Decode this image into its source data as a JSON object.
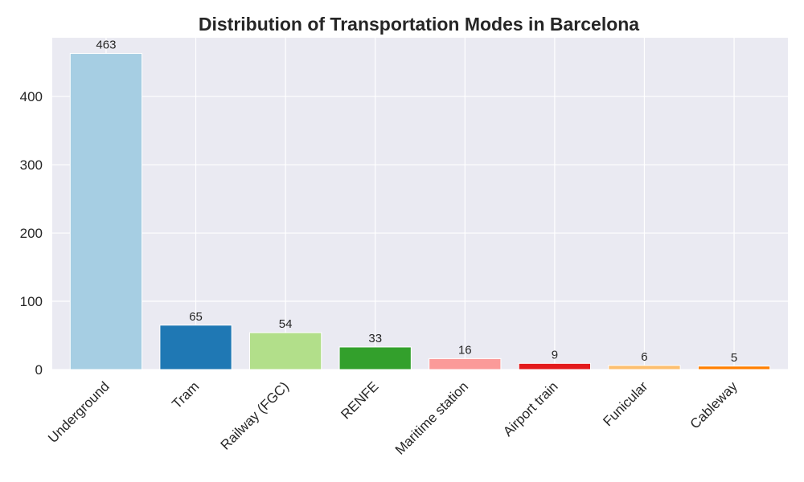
{
  "chart_data": {
    "type": "bar",
    "title": "Distribution of Transportation Modes in Barcelona",
    "xlabel": "",
    "ylabel": "",
    "categories": [
      "Underground",
      "Tram",
      "Railway (FGC)",
      "RENFE",
      "Maritime station",
      "Airport train",
      "Funicular",
      "Cableway"
    ],
    "values": [
      463,
      65,
      54,
      33,
      16,
      9,
      6,
      5
    ],
    "colors": [
      "#a6cee3",
      "#1f78b4",
      "#b2df8a",
      "#33a02c",
      "#fb9a99",
      "#e31a1c",
      "#fdbf6f",
      "#ff7f00"
    ],
    "ylim": [
      0,
      486
    ],
    "yticks": [
      0,
      100,
      200,
      300,
      400
    ],
    "grid": true,
    "background": "#eaeaf2",
    "data_labels": true
  }
}
